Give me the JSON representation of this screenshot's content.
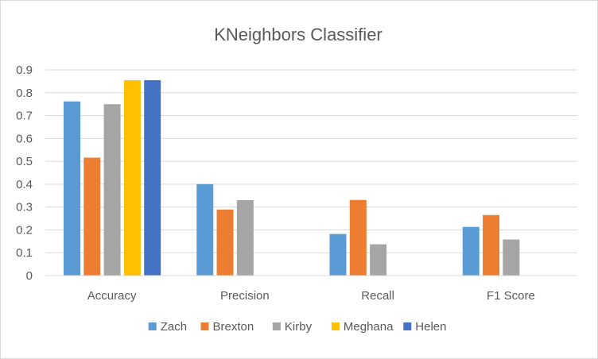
{
  "chart_data": {
    "type": "bar",
    "title": "KNeighbors Classifier",
    "xlabel": "",
    "ylabel": "",
    "categories": [
      "Accuracy",
      "Precision",
      "Recall",
      "F1 Score"
    ],
    "series": [
      {
        "name": "Zach",
        "color": "#5B9BD5",
        "values": [
          0.762,
          0.4,
          0.182,
          0.213
        ]
      },
      {
        "name": "Brexton",
        "color": "#ED7D31",
        "values": [
          0.516,
          0.289,
          0.331,
          0.265
        ]
      },
      {
        "name": "Kirby",
        "color": "#A5A5A5",
        "values": [
          0.75,
          0.33,
          0.137,
          0.158
        ]
      },
      {
        "name": "Meghana",
        "color": "#FFC000",
        "values": [
          0.855,
          0,
          0,
          0
        ]
      },
      {
        "name": "Helen",
        "color": "#4472C4",
        "values": [
          0.855,
          0,
          0,
          0
        ]
      }
    ],
    "ylim": [
      0,
      0.9
    ],
    "yticks": [
      "0",
      "0.1",
      "0.2",
      "0.3",
      "0.4",
      "0.5",
      "0.6",
      "0.7",
      "0.8",
      "0.9"
    ],
    "grid": true,
    "legend_position": "bottom"
  }
}
